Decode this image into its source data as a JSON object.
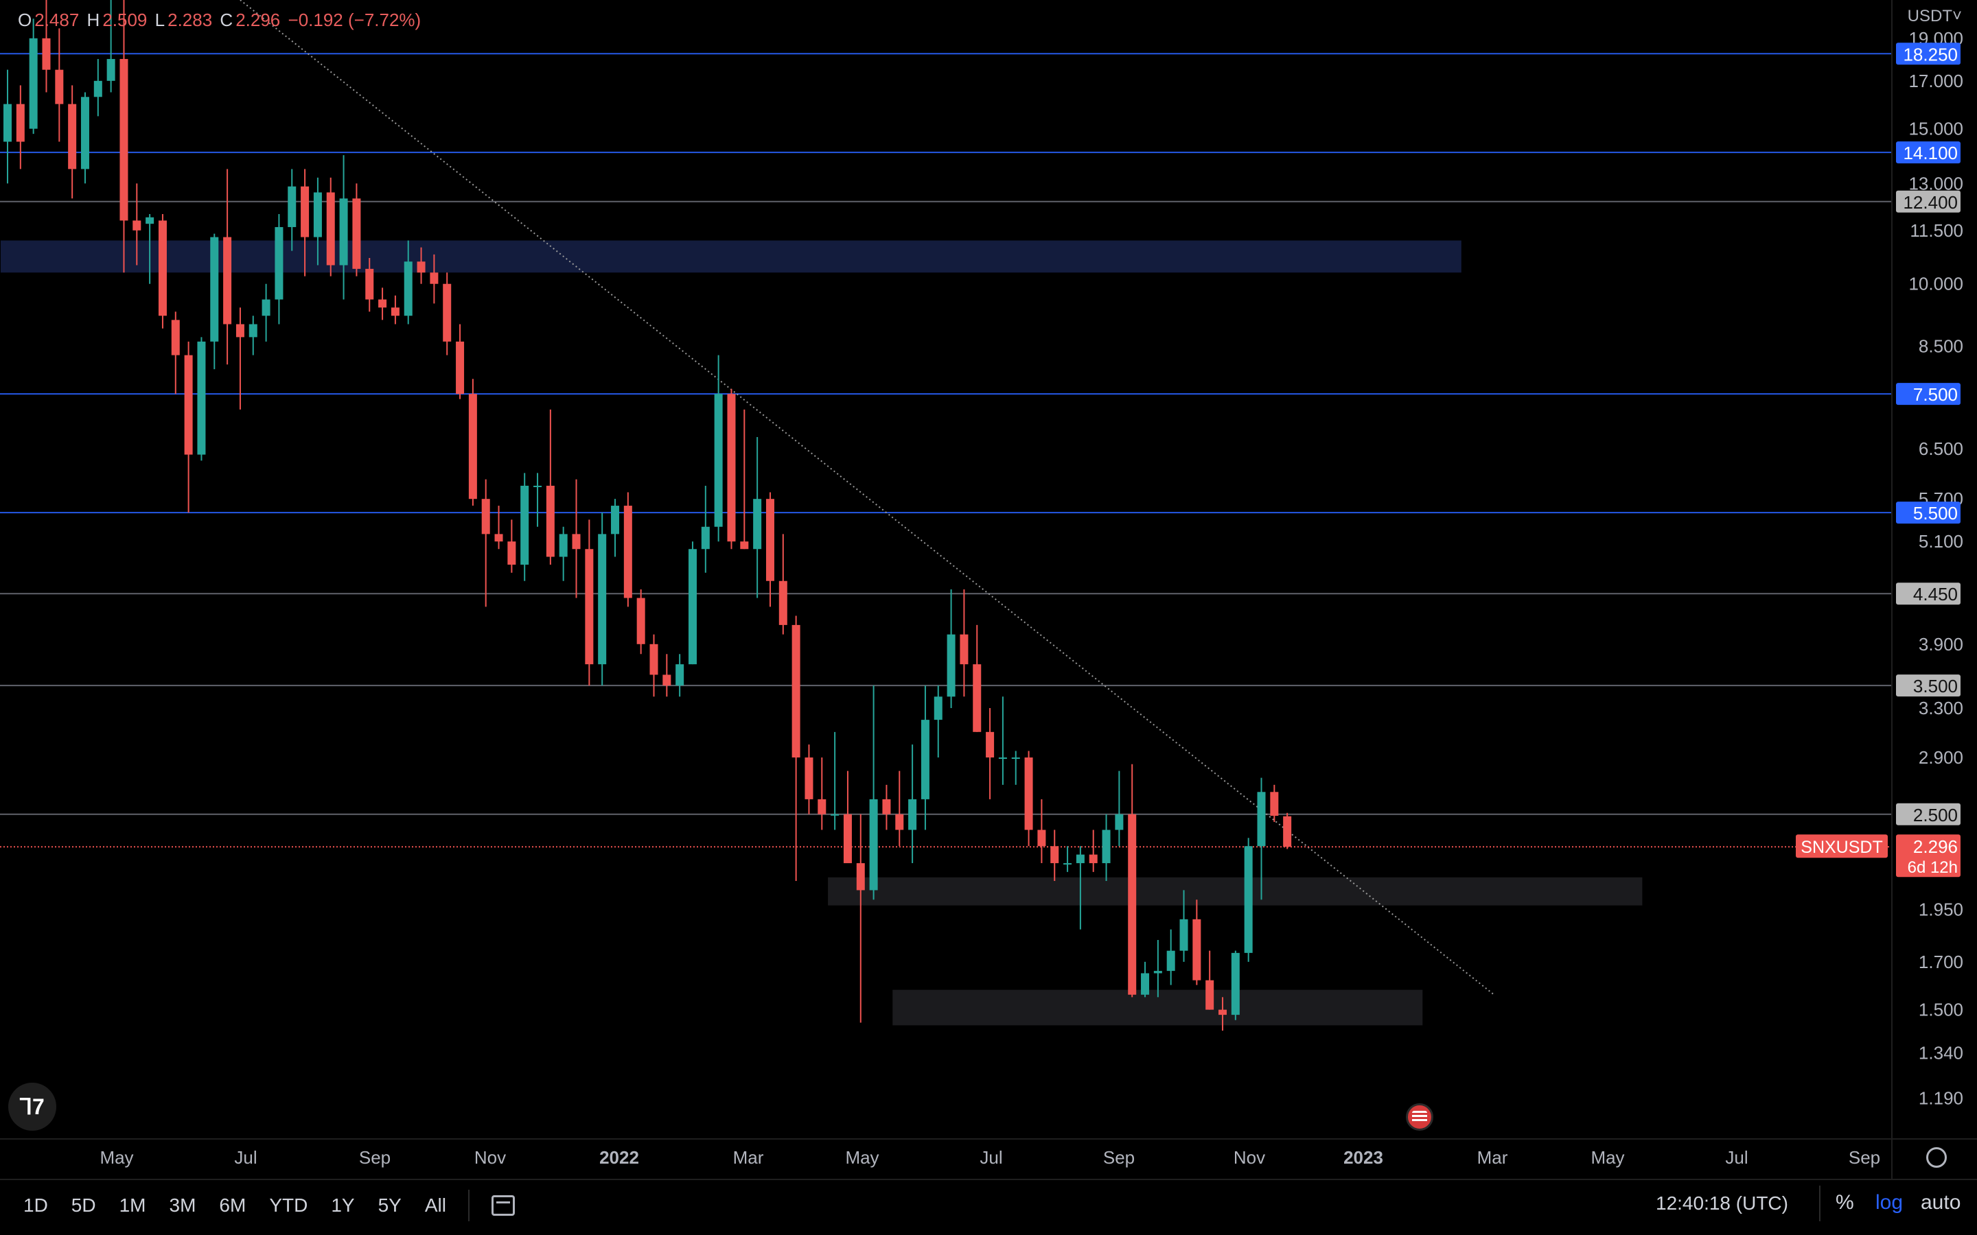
{
  "header": {
    "open_label": "O",
    "open": "2.487",
    "high_label": "H",
    "high": "2.509",
    "low_label": "L",
    "low": "2.283",
    "close_label": "C",
    "close": "2.296",
    "change": "−0.192 (−7.72%)",
    "currency": "USDT˅"
  },
  "chart_data": {
    "type": "candlestick",
    "symbol": "SNXUSDT",
    "interval": "weekly",
    "y_scale": "log",
    "ylim": [
      1.07,
      21.0
    ],
    "y_ticks": [
      "19.000",
      "17.000",
      "15.000",
      "13.000",
      "11.500",
      "10.000",
      "8.500",
      "6.500",
      "5.700",
      "5.100",
      "3.900",
      "3.300",
      "2.900",
      "1.950",
      "1.700",
      "1.500",
      "1.340",
      "1.190"
    ],
    "x_ticks": [
      "May",
      "Jul",
      "Sep",
      "Nov",
      "2022",
      "Mar",
      "May",
      "Jul",
      "Sep",
      "Nov",
      "2023",
      "Mar",
      "May",
      "Jul",
      "Sep"
    ],
    "x_ticks_bold": [
      "2022",
      "2023"
    ],
    "candles": [
      [
        14.5,
        17.5,
        13.0,
        16.0
      ],
      [
        16.0,
        16.8,
        13.5,
        14.5
      ],
      [
        15.0,
        20.0,
        14.8,
        19.0
      ],
      [
        19.0,
        21.0,
        16.5,
        17.5
      ],
      [
        17.5,
        19.5,
        14.5,
        16.0
      ],
      [
        16.0,
        16.8,
        12.5,
        13.5
      ],
      [
        13.5,
        16.5,
        13.0,
        16.3
      ],
      [
        16.3,
        18.0,
        15.5,
        17.0
      ],
      [
        17.0,
        21.0,
        16.5,
        18.0
      ],
      [
        18.0,
        21.0,
        10.3,
        11.8
      ],
      [
        11.8,
        13.0,
        10.5,
        11.5
      ],
      [
        11.7,
        12.0,
        10.0,
        11.9
      ],
      [
        11.8,
        12.0,
        8.9,
        9.2
      ],
      [
        9.1,
        9.3,
        7.5,
        8.3
      ],
      [
        8.3,
        8.6,
        5.5,
        6.4
      ],
      [
        6.4,
        8.7,
        6.3,
        8.6
      ],
      [
        8.6,
        11.4,
        8.0,
        11.3
      ],
      [
        11.3,
        13.5,
        8.1,
        9.0
      ],
      [
        9.0,
        9.4,
        7.2,
        8.7
      ],
      [
        8.7,
        9.2,
        8.3,
        9.0
      ],
      [
        9.2,
        10.0,
        8.6,
        9.6
      ],
      [
        9.6,
        12.0,
        9.0,
        11.6
      ],
      [
        11.6,
        13.5,
        10.9,
        12.9
      ],
      [
        12.9,
        13.5,
        10.2,
        11.3
      ],
      [
        11.3,
        13.2,
        10.5,
        12.7
      ],
      [
        12.7,
        13.2,
        10.2,
        10.5
      ],
      [
        10.5,
        14.0,
        9.6,
        12.5
      ],
      [
        12.5,
        13.0,
        10.2,
        10.4
      ],
      [
        10.4,
        10.7,
        9.3,
        9.6
      ],
      [
        9.6,
        9.9,
        9.1,
        9.4
      ],
      [
        9.4,
        9.7,
        9.0,
        9.2
      ],
      [
        9.2,
        11.2,
        9.0,
        10.6
      ],
      [
        10.6,
        11.0,
        10.0,
        10.3
      ],
      [
        10.3,
        10.8,
        9.5,
        10.0
      ],
      [
        10.0,
        10.3,
        8.3,
        8.6
      ],
      [
        8.6,
        9.0,
        7.4,
        7.5
      ],
      [
        7.5,
        7.8,
        5.6,
        5.7
      ],
      [
        5.7,
        6.0,
        4.3,
        5.2
      ],
      [
        5.2,
        5.6,
        5.0,
        5.1
      ],
      [
        5.1,
        5.4,
        4.7,
        4.8
      ],
      [
        4.8,
        6.1,
        4.6,
        5.9
      ],
      [
        5.9,
        6.1,
        5.3,
        5.9
      ],
      [
        5.9,
        7.2,
        4.8,
        4.9
      ],
      [
        4.9,
        5.3,
        4.6,
        5.2
      ],
      [
        5.2,
        6.0,
        4.4,
        5.0
      ],
      [
        5.0,
        5.4,
        3.5,
        3.7
      ],
      [
        3.7,
        5.5,
        3.5,
        5.2
      ],
      [
        5.2,
        5.7,
        4.9,
        5.6
      ],
      [
        5.6,
        5.8,
        4.3,
        4.4
      ],
      [
        4.4,
        4.5,
        3.8,
        3.9
      ],
      [
        3.9,
        4.0,
        3.4,
        3.6
      ],
      [
        3.6,
        3.8,
        3.4,
        3.5
      ],
      [
        3.5,
        3.8,
        3.4,
        3.7
      ],
      [
        3.7,
        5.1,
        3.7,
        5.0
      ],
      [
        5.0,
        5.9,
        4.7,
        5.3
      ],
      [
        5.3,
        8.3,
        5.1,
        7.5
      ],
      [
        7.5,
        7.6,
        5.0,
        5.1
      ],
      [
        5.1,
        7.2,
        5.0,
        5.0
      ],
      [
        5.0,
        6.7,
        4.4,
        5.7
      ],
      [
        5.7,
        5.8,
        4.3,
        4.6
      ],
      [
        4.6,
        5.2,
        4.0,
        4.1
      ],
      [
        4.1,
        4.2,
        2.1,
        2.9
      ],
      [
        2.9,
        3.0,
        2.5,
        2.6
      ],
      [
        2.6,
        2.9,
        2.4,
        2.5
      ],
      [
        2.5,
        3.1,
        2.4,
        2.5
      ],
      [
        2.5,
        2.8,
        2.2,
        2.2
      ],
      [
        2.2,
        2.5,
        1.45,
        2.05
      ],
      [
        2.05,
        3.5,
        2.0,
        2.6
      ],
      [
        2.6,
        2.7,
        2.4,
        2.5
      ],
      [
        2.5,
        2.8,
        2.3,
        2.4
      ],
      [
        2.4,
        3.0,
        2.2,
        2.6
      ],
      [
        2.6,
        3.5,
        2.4,
        3.2
      ],
      [
        3.2,
        3.5,
        2.9,
        3.4
      ],
      [
        3.4,
        4.5,
        3.3,
        4.0
      ],
      [
        4.0,
        4.5,
        3.4,
        3.7
      ],
      [
        3.7,
        4.1,
        3.1,
        3.1
      ],
      [
        3.1,
        3.3,
        2.6,
        2.9
      ],
      [
        2.9,
        3.4,
        2.7,
        2.9
      ],
      [
        2.9,
        2.95,
        2.7,
        2.9
      ],
      [
        2.9,
        2.95,
        2.3,
        2.4
      ],
      [
        2.4,
        2.6,
        2.2,
        2.3
      ],
      [
        2.3,
        2.4,
        2.1,
        2.2
      ],
      [
        2.2,
        2.3,
        2.15,
        2.2
      ],
      [
        2.2,
        2.3,
        1.85,
        2.25
      ],
      [
        2.25,
        2.4,
        2.15,
        2.2
      ],
      [
        2.2,
        2.5,
        2.1,
        2.4
      ],
      [
        2.4,
        2.8,
        2.3,
        2.5
      ],
      [
        2.5,
        2.85,
        1.55,
        1.56
      ],
      [
        1.56,
        1.7,
        1.55,
        1.65
      ],
      [
        1.65,
        1.8,
        1.55,
        1.66
      ],
      [
        1.66,
        1.85,
        1.6,
        1.75
      ],
      [
        1.75,
        2.05,
        1.7,
        1.9
      ],
      [
        1.9,
        2.0,
        1.6,
        1.62
      ],
      [
        1.62,
        1.75,
        1.5,
        1.5
      ],
      [
        1.5,
        1.55,
        1.42,
        1.48
      ],
      [
        1.48,
        1.75,
        1.46,
        1.74
      ],
      [
        1.74,
        2.35,
        1.7,
        2.3
      ],
      [
        2.3,
        2.75,
        2.0,
        2.65
      ],
      [
        2.65,
        2.7,
        2.45,
        2.49
      ],
      [
        2.487,
        2.509,
        2.283,
        2.296
      ]
    ],
    "levels": [
      {
        "value": 18.25,
        "label": "18.250",
        "style": "blue"
      },
      {
        "value": 14.1,
        "label": "14.100",
        "style": "blue"
      },
      {
        "value": 12.4,
        "label": "12.400",
        "style": "grey"
      },
      {
        "value": 7.5,
        "label": "7.500",
        "style": "blue"
      },
      {
        "value": 5.5,
        "label": "5.500",
        "style": "blue"
      },
      {
        "value": 4.45,
        "label": "4.450",
        "style": "grey"
      },
      {
        "value": 3.5,
        "label": "3.500",
        "style": "grey"
      },
      {
        "value": 2.5,
        "label": "2.500",
        "style": "grey"
      }
    ],
    "zones": [
      {
        "low": 10.3,
        "high": 11.2,
        "from_candle": 0,
        "to_candle": 113,
        "color": "#131c3d"
      },
      {
        "low": 1.97,
        "high": 2.12,
        "from_candle": 64,
        "to_candle": 127,
        "color": "#1b1b1e"
      },
      {
        "low": 1.44,
        "high": 1.58,
        "from_candle": 69,
        "to_candle": 110,
        "color": "#1b1b1e"
      }
    ],
    "trendline": {
      "from": {
        "candle": 18,
        "value": 21.0
      },
      "to": {
        "candle": 115,
        "value": 1.56
      }
    },
    "last_price": {
      "value": 2.296,
      "symbol_label": "SNXUSDT",
      "price_label": "2.296",
      "countdown": "6d 12h"
    },
    "colors": {
      "up": "#26a69a",
      "down": "#ef5350",
      "level_blue": "#2962ff",
      "level_grey": "#787b86"
    }
  },
  "toolbar": {
    "ranges": [
      "1D",
      "5D",
      "1M",
      "3M",
      "6M",
      "YTD",
      "1Y",
      "5Y",
      "All"
    ],
    "clock": "12:40:18 (UTC)",
    "percent": "%",
    "log": "log",
    "auto": "auto"
  }
}
